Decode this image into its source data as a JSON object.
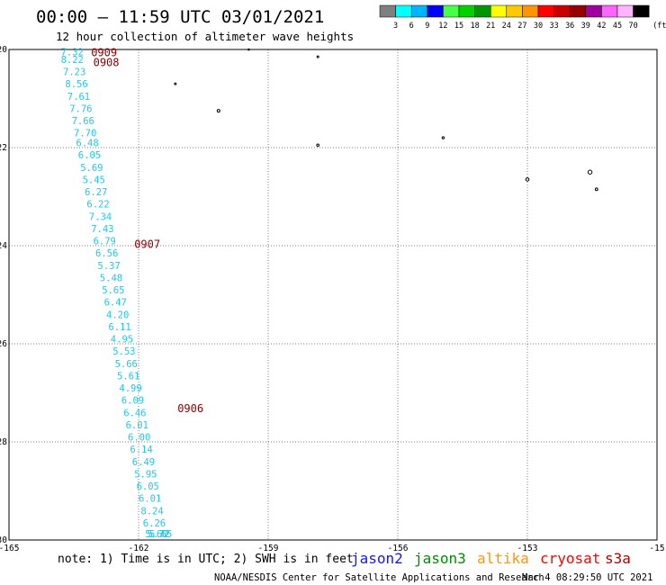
{
  "header": {
    "title": "00:00 – 11:59 UTC 03/01/2021",
    "subtitle": "12 hour collection of altimeter wave heights"
  },
  "colorbar": {
    "labels": [
      "3",
      "6",
      "9",
      "12",
      "15",
      "18",
      "21",
      "24",
      "27",
      "30",
      "33",
      "36",
      "39",
      "42",
      "45",
      "70"
    ],
    "unit": "(ft)",
    "colors": [
      "#7f7f7f",
      "#00ffff",
      "#00b4ff",
      "#0000ff",
      "#46ff46",
      "#00d200",
      "#009600",
      "#ffff00",
      "#ffc800",
      "#ff9600",
      "#ff0000",
      "#c80000",
      "#960000",
      "#a000a0",
      "#ff64ff",
      "#ffb4ff",
      "#000000"
    ]
  },
  "chart_data": {
    "type": "scatter",
    "xlim": [
      -165,
      -150
    ],
    "ylim": [
      -30,
      -20
    ],
    "xticks": [
      "-165",
      "-162",
      "-159",
      "-156",
      "-153",
      "-15"
    ],
    "yticks": [
      "-20",
      "-22",
      "-24",
      "-26",
      "-28",
      "-30"
    ],
    "series": [
      {
        "satellite": "jason2",
        "color": "#1fc8e8",
        "points": [
          {
            "lon": -163.8,
            "lat": -20.05,
            "swh": "7.32"
          },
          {
            "lon": -163.8,
            "lat": -20.2,
            "swh": "8.22"
          },
          {
            "lon": -163.75,
            "lat": -20.45,
            "swh": "7.23"
          },
          {
            "lon": -163.7,
            "lat": -20.7,
            "swh": "8.56"
          },
          {
            "lon": -163.65,
            "lat": -20.95,
            "swh": "7.61"
          },
          {
            "lon": -163.6,
            "lat": -21.2,
            "swh": "7.76"
          },
          {
            "lon": -163.55,
            "lat": -21.45,
            "swh": "7.66"
          },
          {
            "lon": -163.5,
            "lat": -21.7,
            "swh": "7.70"
          },
          {
            "lon": -163.45,
            "lat": -21.9,
            "swh": "6.48"
          },
          {
            "lon": -163.4,
            "lat": -22.15,
            "swh": "6.05"
          },
          {
            "lon": -163.35,
            "lat": -22.4,
            "swh": "5.69"
          },
          {
            "lon": -163.3,
            "lat": -22.65,
            "swh": "5.45"
          },
          {
            "lon": -163.25,
            "lat": -22.9,
            "swh": "6.27"
          },
          {
            "lon": -163.2,
            "lat": -23.15,
            "swh": "6.22"
          },
          {
            "lon": -163.15,
            "lat": -23.4,
            "swh": "7.34"
          },
          {
            "lon": -163.1,
            "lat": -23.65,
            "swh": "7.43"
          },
          {
            "lon": -163.05,
            "lat": -23.9,
            "swh": "6.79"
          },
          {
            "lon": -163.0,
            "lat": -24.15,
            "swh": "6.56"
          },
          {
            "lon": -162.95,
            "lat": -24.4,
            "swh": "5.37"
          },
          {
            "lon": -162.9,
            "lat": -24.65,
            "swh": "5.48"
          },
          {
            "lon": -162.85,
            "lat": -24.9,
            "swh": "5.65"
          },
          {
            "lon": -162.8,
            "lat": -25.15,
            "swh": "6.47"
          },
          {
            "lon": -162.75,
            "lat": -25.4,
            "swh": "4.20"
          },
          {
            "lon": -162.7,
            "lat": -25.65,
            "swh": "6.11"
          },
          {
            "lon": -162.65,
            "lat": -25.9,
            "swh": "4.95"
          },
          {
            "lon": -162.6,
            "lat": -26.15,
            "swh": "5.53"
          },
          {
            "lon": -162.55,
            "lat": -26.4,
            "swh": "5.66"
          },
          {
            "lon": -162.5,
            "lat": -26.65,
            "swh": "5.61"
          },
          {
            "lon": -162.45,
            "lat": -26.9,
            "swh": "4.99"
          },
          {
            "lon": -162.4,
            "lat": -27.15,
            "swh": "6.09"
          },
          {
            "lon": -162.35,
            "lat": -27.4,
            "swh": "6.46"
          },
          {
            "lon": -162.3,
            "lat": -27.65,
            "swh": "6.01"
          },
          {
            "lon": -162.25,
            "lat": -27.9,
            "swh": "6.00"
          },
          {
            "lon": -162.2,
            "lat": -28.15,
            "swh": "6.14"
          },
          {
            "lon": -162.15,
            "lat": -28.4,
            "swh": "6.49"
          },
          {
            "lon": -162.1,
            "lat": -28.65,
            "swh": "5.95"
          },
          {
            "lon": -162.05,
            "lat": -28.9,
            "swh": "6.05"
          },
          {
            "lon": -162.0,
            "lat": -29.15,
            "swh": "6.01"
          },
          {
            "lon": -161.95,
            "lat": -29.4,
            "swh": "8.24"
          },
          {
            "lon": -161.9,
            "lat": -29.65,
            "swh": "6.26"
          },
          {
            "lon": -161.85,
            "lat": -29.9,
            "swh": "5.60"
          },
          {
            "lon": -161.8,
            "lat": -30.15,
            "swh": "5.72"
          },
          {
            "lon": -161.75,
            "lat": -30.4,
            "swh": "5.65"
          }
        ],
        "pass_times": [
          {
            "lon": -163.1,
            "lat": -20.05,
            "label": "0909"
          },
          {
            "lon": -163.05,
            "lat": -20.25,
            "label": "0908"
          },
          {
            "lon": -162.1,
            "lat": -23.95,
            "label": "0907"
          },
          {
            "lon": -161.1,
            "lat": -27.3,
            "label": "0906"
          }
        ]
      }
    ]
  },
  "islands": [
    {
      "lon": -159.45,
      "lat": -20.0,
      "r": 0.8
    },
    {
      "lon": -157.85,
      "lat": -20.15,
      "r": 1.0
    },
    {
      "lon": -161.15,
      "lat": -20.7,
      "r": 1.0
    },
    {
      "lon": -160.15,
      "lat": -21.25,
      "r": 1.5
    },
    {
      "lon": -157.85,
      "lat": -21.95,
      "r": 1.3
    },
    {
      "lon": -154.95,
      "lat": -21.8,
      "r": 1.2
    },
    {
      "lon": -153.0,
      "lat": -22.65,
      "r": 1.8
    },
    {
      "lon": -151.55,
      "lat": -22.5,
      "r": 2.2
    },
    {
      "lon": -151.4,
      "lat": -22.85,
      "r": 1.4
    }
  ],
  "footer": {
    "note": "note:  1) Time is in UTC; 2) SWH is in feet",
    "satellites": [
      {
        "name": "jason2",
        "color": "#1515ff"
      },
      {
        "name": "jason3",
        "color": "#008a00"
      },
      {
        "name": "altika",
        "color": "#ff9600"
      },
      {
        "name": "cryosat",
        "color": "#ff0000"
      },
      {
        "name": "s3a",
        "color": "#b40000"
      }
    ],
    "credit": "NOAA/NESDIS Center for Satellite Applications and Research",
    "timestamp": "Mar  4 08:29:50 UTC 2021"
  }
}
